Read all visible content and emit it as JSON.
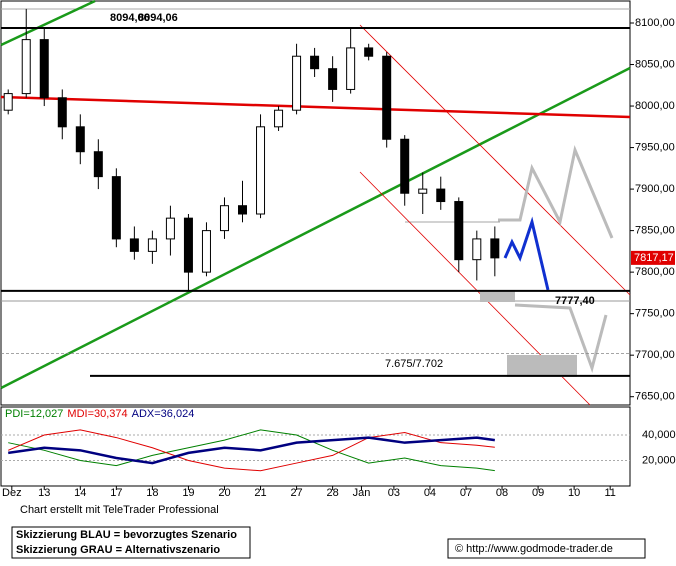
{
  "chart_data": {
    "type": "candlestick",
    "candles": {
      "x": [
        0,
        0.5,
        1,
        1.5,
        2,
        2.5,
        3,
        3.5,
        4,
        4.5,
        5,
        5.5,
        6,
        6.5,
        7,
        7.5,
        8,
        8.5,
        9,
        9.5,
        10,
        10.5,
        11,
        11.5,
        12,
        12.5,
        13,
        13.5
      ],
      "open": [
        7995,
        8015,
        8080,
        8010,
        7975,
        7945,
        7915,
        7840,
        7825,
        7840,
        7865,
        7800,
        7850,
        7880,
        7870,
        7975,
        7995,
        8060,
        8045,
        8020,
        8070,
        8060,
        7960,
        7895,
        7900,
        7885,
        7815,
        7840
      ],
      "high": [
        8020,
        8117,
        8095,
        8020,
        7990,
        7960,
        7925,
        7855,
        7850,
        7880,
        7870,
        7860,
        7890,
        7910,
        7990,
        8000,
        8075,
        8070,
        8060,
        8094.06,
        8075,
        8065,
        7965,
        7920,
        7915,
        7890,
        7850,
        7855
      ],
      "low": [
        7990,
        8010,
        8000,
        7960,
        7930,
        7900,
        7830,
        7815,
        7810,
        7820,
        7777.4,
        7795,
        7840,
        7860,
        7865,
        7970,
        7990,
        8035,
        8005,
        8015,
        8055,
        7950,
        7880,
        7870,
        7875,
        7800,
        7790,
        7795
      ],
      "close": [
        8015,
        8080,
        8010,
        7975,
        7945,
        7915,
        7840,
        7825,
        7840,
        7865,
        7800,
        7850,
        7880,
        7870,
        7975,
        7995,
        8060,
        8045,
        8020,
        8070,
        8060,
        7960,
        7895,
        7900,
        7885,
        7815,
        7840,
        7817.17
      ],
      "last_value_label": "7817,17"
    },
    "xlim": [
      -0.2,
      17.25
    ],
    "xticks": [
      {
        "value": 0.1,
        "label": "Dez"
      },
      {
        "value": 1,
        "label": "13"
      },
      {
        "value": 2,
        "label": "14"
      },
      {
        "value": 3,
        "label": "17"
      },
      {
        "value": 4,
        "label": "18"
      },
      {
        "value": 5,
        "label": "19"
      },
      {
        "value": 6,
        "label": "20"
      },
      {
        "value": 7,
        "label": "21"
      },
      {
        "value": 8,
        "label": "27"
      },
      {
        "value": 9,
        "label": "28"
      },
      {
        "value": 9.8,
        "label": "Jan"
      },
      {
        "value": 10.7,
        "label": "03"
      },
      {
        "value": 11.7,
        "label": "04"
      },
      {
        "value": 12.7,
        "label": "07"
      },
      {
        "value": 13.7,
        "label": "08"
      },
      {
        "value": 14.7,
        "label": "09"
      },
      {
        "value": 15.7,
        "label": "10"
      },
      {
        "value": 16.7,
        "label": "11"
      }
    ],
    "ylim": [
      7640,
      8126.5
    ],
    "yticks": [
      {
        "value": 8100,
        "label": "8100,00"
      },
      {
        "value": 8050,
        "label": "8050,00"
      },
      {
        "value": 8000,
        "label": "8000,00"
      },
      {
        "value": 7950,
        "label": "7950,00"
      },
      {
        "value": 7900,
        "label": "7900,00"
      },
      {
        "value": 7850,
        "label": "7850,00"
      },
      {
        "value": 7800,
        "label": "7800,00"
      },
      {
        "value": 7750,
        "label": "7750,00"
      },
      {
        "value": 7700,
        "label": "7700,00"
      },
      {
        "value": 7650,
        "label": "7650,00"
      }
    ],
    "levels": [
      {
        "value": 8094.06,
        "label": "8094,06",
        "style": "solid"
      },
      {
        "value": 7777.4,
        "label": "7777,40",
        "style": "solid"
      },
      {
        "value": 7675,
        "label": "7.675/7.702",
        "style": "solid"
      },
      {
        "value": 7702,
        "style": "dashed"
      }
    ],
    "indicator": {
      "x": [
        0,
        1,
        2,
        3,
        4,
        5,
        6,
        7,
        8,
        9,
        10,
        11,
        12,
        13,
        13.5
      ],
      "ylim": [
        0,
        62000
      ],
      "yticks": [
        {
          "value": 40000,
          "label": "40,000"
        },
        {
          "value": 20000,
          "label": "20,000"
        }
      ],
      "series": [
        {
          "name": "PDI=12,027",
          "color": "#008000",
          "values": [
            34000,
            28000,
            20000,
            16000,
            24000,
            30000,
            36000,
            44000,
            40000,
            28000,
            18000,
            22000,
            16000,
            14000,
            12027
          ]
        },
        {
          "name": "MDI=30,374",
          "color": "#e00000",
          "values": [
            28000,
            40000,
            44000,
            38000,
            30000,
            20000,
            14000,
            12000,
            18000,
            24000,
            38000,
            42000,
            34000,
            32000,
            30374
          ]
        },
        {
          "name": "ADX=36,024",
          "color": "#000080",
          "values": [
            26000,
            30000,
            28000,
            22000,
            18000,
            26000,
            30000,
            28000,
            34000,
            36000,
            38000,
            34000,
            36000,
            38000,
            36024
          ]
        }
      ]
    },
    "footer": {
      "credit": "Chart erstellt mit TeleTrader Professional",
      "legend_blue": "Skizzierung BLAU = bevorzugtes Szenario",
      "legend_gray": "Skizzierung GRAU = Alternativszenario",
      "source": "© http://www.godmode-trader.de"
    }
  }
}
